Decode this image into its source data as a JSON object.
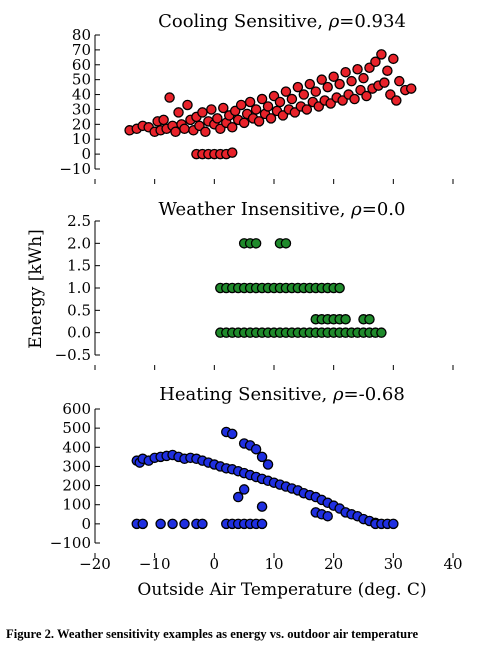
{
  "caption": "Figure 2.  Weather sensitivity examples as energy vs.  outdoor air temperature",
  "xlabel": "Outside Air Temperature (deg. C)",
  "ylabel": "Energy [kWh]",
  "xticks": [
    "−20",
    "−10",
    "0",
    "10",
    "20",
    "30",
    "40"
  ],
  "chart_data": [
    {
      "type": "scatter",
      "title_prefix": "Cooling Sensitive, ",
      "rho_symbol": "ρ",
      "rho_value": "=0.934",
      "color": "#e8222a",
      "xlim": [
        -20,
        40
      ],
      "ylim": [
        -10,
        80
      ],
      "yticks": [
        -10,
        0,
        10,
        20,
        30,
        40,
        50,
        60,
        70,
        80
      ],
      "ytick_labels": [
        "−10",
        "0",
        "10",
        "20",
        "30",
        "40",
        "50",
        "60",
        "70",
        "80"
      ],
      "points": [
        [
          -14.2,
          16
        ],
        [
          -13,
          17
        ],
        [
          -12,
          19
        ],
        [
          -11,
          18
        ],
        [
          -10,
          15
        ],
        [
          -9.5,
          22
        ],
        [
          -9,
          16
        ],
        [
          -8.5,
          23
        ],
        [
          -8,
          17
        ],
        [
          -7.5,
          38
        ],
        [
          -7,
          19
        ],
        [
          -6.5,
          15
        ],
        [
          -6,
          28
        ],
        [
          -5.5,
          20
        ],
        [
          -5,
          17
        ],
        [
          -4.5,
          33
        ],
        [
          -4,
          23
        ],
        [
          -3.5,
          16
        ],
        [
          -3,
          25
        ],
        [
          -2.5,
          19
        ],
        [
          -2,
          28
        ],
        [
          -1.5,
          15
        ],
        [
          -1,
          22
        ],
        [
          -0.5,
          30
        ],
        [
          0,
          20
        ],
        [
          0.5,
          24
        ],
        [
          1,
          17
        ],
        [
          1.5,
          31
        ],
        [
          2,
          21
        ],
        [
          2.5,
          26
        ],
        [
          3,
          18
        ],
        [
          3.5,
          29
        ],
        [
          4,
          23
        ],
        [
          4.5,
          33
        ],
        [
          5,
          21
        ],
        [
          5.5,
          27
        ],
        [
          6,
          35
        ],
        [
          6.5,
          24
        ],
        [
          7,
          30
        ],
        [
          7.5,
          22
        ],
        [
          8,
          37
        ],
        [
          8.5,
          27
        ],
        [
          9,
          32
        ],
        [
          9.5,
          24
        ],
        [
          10,
          39
        ],
        [
          10.5,
          29
        ],
        [
          11,
          35
        ],
        [
          11.5,
          26
        ],
        [
          12,
          42
        ],
        [
          12.5,
          30
        ],
        [
          13,
          37
        ],
        [
          13.5,
          28
        ],
        [
          14,
          45
        ],
        [
          14.5,
          32
        ],
        [
          15,
          40
        ],
        [
          15.5,
          30
        ],
        [
          16,
          47
        ],
        [
          16.5,
          35
        ],
        [
          17,
          42
        ],
        [
          17.5,
          32
        ],
        [
          18,
          50
        ],
        [
          18.5,
          36
        ],
        [
          19,
          45
        ],
        [
          19.5,
          34
        ],
        [
          20,
          52
        ],
        [
          20.5,
          38
        ],
        [
          21,
          47
        ],
        [
          21.5,
          36
        ],
        [
          22,
          55
        ],
        [
          22.5,
          40
        ],
        [
          23,
          49
        ],
        [
          23.5,
          37
        ],
        [
          24,
          57
        ],
        [
          24.5,
          43
        ],
        [
          25,
          51
        ],
        [
          25.5,
          39
        ],
        [
          26,
          58
        ],
        [
          26.5,
          44
        ],
        [
          27,
          62
        ],
        [
          27.5,
          46
        ],
        [
          28,
          67
        ],
        [
          28.5,
          48
        ],
        [
          29,
          56
        ],
        [
          29.5,
          40
        ],
        [
          30,
          64
        ],
        [
          30.5,
          36
        ],
        [
          31,
          49
        ],
        [
          32,
          43
        ],
        [
          33,
          44
        ],
        [
          -3,
          0
        ],
        [
          -2,
          0
        ],
        [
          -1,
          0
        ],
        [
          0,
          0
        ],
        [
          1,
          0
        ],
        [
          2,
          0
        ],
        [
          3,
          1
        ]
      ]
    },
    {
      "type": "scatter",
      "title_prefix": "Weather Insensitive, ",
      "rho_symbol": "ρ",
      "rho_value": "=0.0",
      "color": "#1f8a2b",
      "xlim": [
        -20,
        40
      ],
      "ylim": [
        -0.5,
        2.5
      ],
      "yticks": [
        -0.5,
        0,
        0.5,
        1,
        1.5,
        2,
        2.5
      ],
      "ytick_labels": [
        "−0.5",
        "0.0",
        "0.5",
        "1.0",
        "1.5",
        "2.0",
        "2.5"
      ],
      "points": [
        [
          5,
          2
        ],
        [
          6,
          2
        ],
        [
          7,
          2
        ],
        [
          11,
          2
        ],
        [
          12,
          2
        ],
        [
          1,
          1
        ],
        [
          2,
          1
        ],
        [
          3,
          1
        ],
        [
          4,
          1
        ],
        [
          5,
          1
        ],
        [
          6,
          1
        ],
        [
          7,
          1
        ],
        [
          8,
          1
        ],
        [
          9,
          1
        ],
        [
          10,
          1
        ],
        [
          11,
          1
        ],
        [
          12,
          1
        ],
        [
          13,
          1
        ],
        [
          14,
          1
        ],
        [
          15,
          1
        ],
        [
          16,
          1
        ],
        [
          17,
          1
        ],
        [
          18,
          1
        ],
        [
          19,
          1
        ],
        [
          20,
          1
        ],
        [
          21,
          1
        ],
        [
          17,
          0.3
        ],
        [
          18,
          0.3
        ],
        [
          19,
          0.3
        ],
        [
          20,
          0.3
        ],
        [
          21,
          0.3
        ],
        [
          22,
          0.3
        ],
        [
          25,
          0.3
        ],
        [
          26,
          0.3
        ],
        [
          1,
          0
        ],
        [
          2,
          0
        ],
        [
          3,
          0
        ],
        [
          4,
          0
        ],
        [
          5,
          0
        ],
        [
          6,
          0
        ],
        [
          7,
          0
        ],
        [
          8,
          0
        ],
        [
          9,
          0
        ],
        [
          10,
          0
        ],
        [
          11,
          0
        ],
        [
          12,
          0
        ],
        [
          13,
          0
        ],
        [
          14,
          0
        ],
        [
          15,
          0
        ],
        [
          16,
          0
        ],
        [
          17,
          0
        ],
        [
          18,
          0
        ],
        [
          19,
          0
        ],
        [
          20,
          0
        ],
        [
          21,
          0
        ],
        [
          22,
          0
        ],
        [
          23,
          0
        ],
        [
          24,
          0
        ],
        [
          25,
          0
        ],
        [
          26,
          0
        ],
        [
          27,
          0
        ],
        [
          28,
          0
        ]
      ]
    },
    {
      "type": "scatter",
      "title_prefix": "Heating Sensitive, ",
      "rho_symbol": "ρ",
      "rho_value": "=-0.68",
      "color": "#1f2fe0",
      "xlim": [
        -20,
        40
      ],
      "ylim": [
        -100,
        600
      ],
      "yticks": [
        -100,
        0,
        100,
        200,
        300,
        400,
        500,
        600
      ],
      "ytick_labels": [
        "−100",
        "0",
        "100",
        "200",
        "300",
        "400",
        "500",
        "600"
      ],
      "points": [
        [
          -13,
          330
        ],
        [
          -12.5,
          320
        ],
        [
          -12,
          340
        ],
        [
          -11,
          330
        ],
        [
          -10,
          345
        ],
        [
          -9,
          350
        ],
        [
          -8,
          355
        ],
        [
          -7,
          360
        ],
        [
          -6,
          350
        ],
        [
          -5,
          340
        ],
        [
          -4,
          345
        ],
        [
          -3,
          340
        ],
        [
          -2,
          330
        ],
        [
          -1,
          320
        ],
        [
          0,
          310
        ],
        [
          1,
          300
        ],
        [
          2,
          290
        ],
        [
          3,
          285
        ],
        [
          4,
          275
        ],
        [
          5,
          265
        ],
        [
          6,
          255
        ],
        [
          7,
          245
        ],
        [
          8,
          235
        ],
        [
          9,
          225
        ],
        [
          10,
          215
        ],
        [
          11,
          205
        ],
        [
          12,
          195
        ],
        [
          13,
          185
        ],
        [
          14,
          175
        ],
        [
          15,
          160
        ],
        [
          16,
          150
        ],
        [
          17,
          140
        ],
        [
          18,
          125
        ],
        [
          19,
          110
        ],
        [
          20,
          95
        ],
        [
          21,
          80
        ],
        [
          22,
          60
        ],
        [
          23,
          50
        ],
        [
          24,
          40
        ],
        [
          25,
          25
        ],
        [
          26,
          15
        ],
        [
          27,
          5
        ],
        [
          2,
          480
        ],
        [
          3,
          470
        ],
        [
          5,
          420
        ],
        [
          6,
          410
        ],
        [
          7,
          390
        ],
        [
          8,
          350
        ],
        [
          9,
          310
        ],
        [
          4,
          140
        ],
        [
          5,
          180
        ],
        [
          8,
          90
        ],
        [
          17,
          60
        ],
        [
          18,
          50
        ],
        [
          19,
          40
        ],
        [
          -13,
          0
        ],
        [
          -12,
          0
        ],
        [
          -9,
          0
        ],
        [
          -7,
          0
        ],
        [
          -5,
          0
        ],
        [
          -3,
          0
        ],
        [
          -2,
          0
        ],
        [
          2,
          0
        ],
        [
          3,
          0
        ],
        [
          4,
          0
        ],
        [
          5,
          0
        ],
        [
          6,
          0
        ],
        [
          7,
          0
        ],
        [
          8,
          0
        ],
        [
          27,
          0
        ],
        [
          28,
          0
        ],
        [
          29,
          0
        ],
        [
          30,
          0
        ]
      ]
    }
  ]
}
